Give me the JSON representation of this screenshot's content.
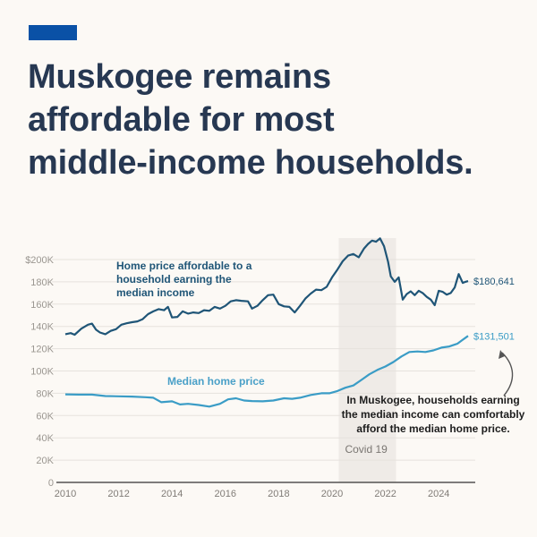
{
  "header": {
    "accent_color": "#0a51a6",
    "title_lines": [
      "Muskogee remains",
      "affordable for most",
      "middle-income households."
    ]
  },
  "chart_data": {
    "type": "line",
    "title": "Muskogee remains affordable for most middle-income households.",
    "xlabel": "",
    "ylabel": "",
    "xlim": [
      2010,
      2025.2
    ],
    "ylim": [
      0,
      200000
    ],
    "x_ticks": [
      2010,
      2012,
      2014,
      2016,
      2018,
      2020,
      2022,
      2024
    ],
    "x_tick_labels": [
      "2010",
      "2012",
      "2014",
      "2016",
      "2018",
      "2020",
      "2022",
      "2024"
    ],
    "y_ticks": [
      0,
      20000,
      40000,
      60000,
      80000,
      100000,
      120000,
      140000,
      160000,
      180000,
      200000
    ],
    "y_tick_labels": [
      "0",
      "20K",
      "40K",
      "60K",
      "80K",
      "100K",
      "120K",
      "140K",
      "160K",
      "180K",
      "$200K"
    ],
    "grid": true,
    "legend": "inline labels",
    "shaded_region": {
      "label": "Covid 19",
      "x_start": 2020.25,
      "x_end": 2022.4
    },
    "series": [
      {
        "name": "Home price affordable to a household earning the median income",
        "label_lines": [
          "Home price affordable to a",
          "household earning the",
          "median income"
        ],
        "color": "#1f5577",
        "end_label": "$180,641",
        "x": [
          2010.0,
          2010.2,
          2010.35,
          2010.6,
          2010.85,
          2011.0,
          2011.15,
          2011.3,
          2011.5,
          2011.7,
          2011.9,
          2012.1,
          2012.3,
          2012.5,
          2012.7,
          2012.9,
          2013.1,
          2013.3,
          2013.5,
          2013.7,
          2013.85,
          2014.0,
          2014.2,
          2014.4,
          2014.6,
          2014.8,
          2015.0,
          2015.2,
          2015.4,
          2015.6,
          2015.8,
          2016.0,
          2016.2,
          2016.4,
          2016.6,
          2016.85,
          2017.0,
          2017.2,
          2017.4,
          2017.6,
          2017.8,
          2018.0,
          2018.2,
          2018.4,
          2018.6,
          2018.8,
          2019.0,
          2019.2,
          2019.4,
          2019.6,
          2019.8,
          2020.0,
          2020.2,
          2020.4,
          2020.6,
          2020.8,
          2021.0,
          2021.2,
          2021.35,
          2021.5,
          2021.65,
          2021.8,
          2021.95,
          2022.1,
          2022.2,
          2022.35,
          2022.5,
          2022.65,
          2022.8,
          2022.95,
          2023.1,
          2023.25,
          2023.4,
          2023.55,
          2023.7,
          2023.85,
          2024.0,
          2024.15,
          2024.3,
          2024.45,
          2024.6,
          2024.75,
          2024.9,
          2025.0,
          2025.1
        ],
        "values": [
          133000,
          134000,
          132500,
          138000,
          141500,
          142500,
          137000,
          134500,
          133000,
          136000,
          137500,
          141500,
          142800,
          143800,
          144500,
          146500,
          151000,
          153500,
          155500,
          154500,
          157500,
          148000,
          148500,
          153500,
          151500,
          152500,
          152000,
          154500,
          154000,
          157500,
          156000,
          158500,
          162500,
          163500,
          163000,
          162500,
          156000,
          158500,
          163500,
          168000,
          168500,
          160000,
          158000,
          157500,
          152500,
          158500,
          165000,
          169500,
          173000,
          172500,
          175500,
          184000,
          191000,
          198500,
          203500,
          205000,
          202000,
          210000,
          214000,
          217000,
          216000,
          219000,
          212000,
          198000,
          185000,
          180000,
          184000,
          164000,
          169000,
          171500,
          168000,
          172000,
          170000,
          166500,
          164000,
          159000,
          172000,
          171000,
          168500,
          170000,
          175000,
          187000,
          179000,
          180000,
          180641
        ]
      },
      {
        "name": "Median home price",
        "label_lines": [
          "Median home price"
        ],
        "color": "#3a9cc6",
        "end_label": "$131,501",
        "x": [
          2010.0,
          2010.5,
          2011.0,
          2011.5,
          2012.0,
          2012.5,
          2013.0,
          2013.3,
          2013.6,
          2014.0,
          2014.3,
          2014.6,
          2015.0,
          2015.4,
          2015.8,
          2016.1,
          2016.4,
          2016.7,
          2017.0,
          2017.4,
          2017.8,
          2018.2,
          2018.5,
          2018.8,
          2019.2,
          2019.6,
          2019.9,
          2020.2,
          2020.5,
          2020.8,
          2021.1,
          2021.4,
          2021.7,
          2022.0,
          2022.3,
          2022.6,
          2022.9,
          2023.2,
          2023.5,
          2023.8,
          2024.1,
          2024.4,
          2024.7,
          2024.9,
          2025.1
        ],
        "values": [
          79000,
          78800,
          78800,
          77500,
          77300,
          77000,
          76500,
          76000,
          72000,
          72800,
          70000,
          70500,
          69500,
          68000,
          70500,
          74500,
          75500,
          73500,
          73000,
          72800,
          73500,
          75500,
          75000,
          76000,
          78500,
          80000,
          80000,
          82000,
          85000,
          87000,
          92000,
          97000,
          101000,
          104000,
          108000,
          113000,
          117000,
          117500,
          117000,
          118500,
          121000,
          122000,
          124500,
          128000,
          131501
        ]
      }
    ],
    "annotation": {
      "lines": [
        "In Muskogee, households earning",
        "the median income can comfortably",
        "afford the median home price."
      ],
      "arrow_target": "$131,501 end label"
    }
  }
}
